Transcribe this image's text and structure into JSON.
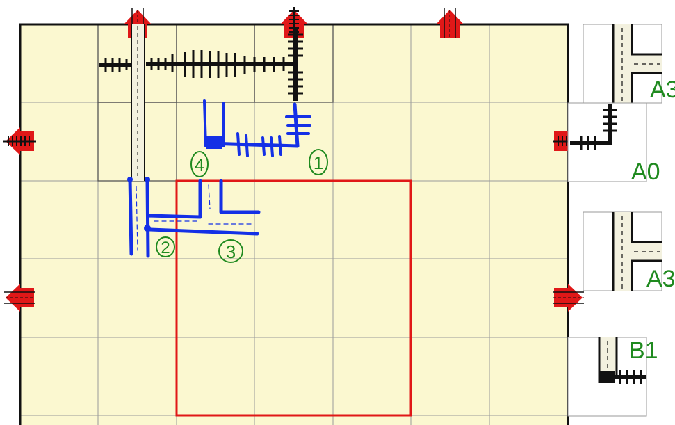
{
  "board": {
    "rows": 6,
    "cols": 7,
    "cell_color": "#fbf8d0",
    "grid_color": "#9a9a9a",
    "border_color": "#111111",
    "highlight_color": "#e01818",
    "entry_color": "#e01818",
    "route_color": "#1430e6",
    "rail_color": "#111111"
  },
  "annotations": {
    "step_1": "1",
    "step_2": "2",
    "step_3": "3",
    "step_4": "4"
  },
  "side_tiles": {
    "tile_1": "A3",
    "tile_2": "A0",
    "tile_3": "A3",
    "tile_4": "B1"
  },
  "label_color": "#1f8a1f"
}
